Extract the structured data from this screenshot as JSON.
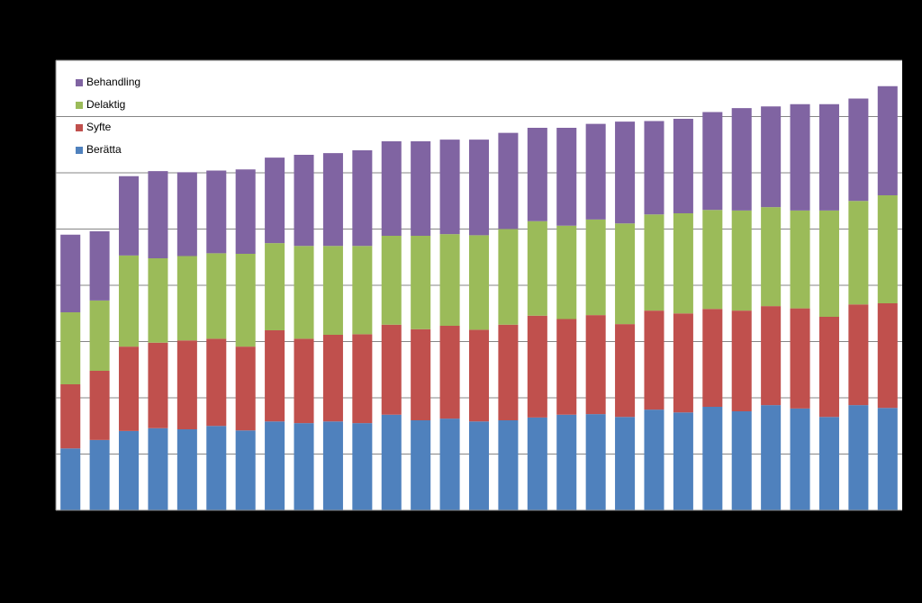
{
  "chart_data": {
    "type": "bar",
    "stacked": true,
    "categories": [
      null,
      null,
      null,
      null,
      null,
      null,
      null,
      null,
      null,
      null,
      null,
      null,
      null,
      null,
      null,
      null,
      null,
      null,
      null,
      null,
      null,
      null,
      null,
      null,
      null,
      null,
      null,
      null,
      null
    ],
    "series": [
      {
        "name": "Berätta",
        "color": "#4f81bd",
        "values": [
          1.1,
          1.25,
          1.41,
          1.46,
          1.44,
          1.5,
          1.42,
          1.58,
          1.55,
          1.58,
          1.55,
          1.7,
          1.6,
          1.63,
          1.58,
          1.6,
          1.65,
          1.7,
          1.71,
          1.66,
          1.79,
          1.74,
          1.84,
          1.76,
          1.87,
          1.81,
          1.66,
          1.87,
          1.82
        ]
      },
      {
        "name": "Syfte",
        "color": "#c0504d",
        "values": [
          1.14,
          1.23,
          1.5,
          1.52,
          1.58,
          1.55,
          1.49,
          1.62,
          1.5,
          1.54,
          1.58,
          1.6,
          1.62,
          1.65,
          1.63,
          1.7,
          1.81,
          1.7,
          1.76,
          1.65,
          1.76,
          1.76,
          1.74,
          1.79,
          1.76,
          1.78,
          1.78,
          1.79,
          1.86
        ]
      },
      {
        "name": "Delaktig",
        "color": "#9bbb59",
        "values": [
          1.28,
          1.25,
          1.62,
          1.5,
          1.5,
          1.52,
          1.65,
          1.55,
          1.65,
          1.58,
          1.57,
          1.58,
          1.66,
          1.63,
          1.68,
          1.7,
          1.68,
          1.66,
          1.7,
          1.79,
          1.71,
          1.78,
          1.76,
          1.78,
          1.76,
          1.74,
          1.89,
          1.84,
          1.92
        ]
      },
      {
        "name": "Behandling",
        "color": "#8064a2",
        "values": [
          1.38,
          1.23,
          1.41,
          1.55,
          1.49,
          1.47,
          1.5,
          1.52,
          1.62,
          1.65,
          1.7,
          1.68,
          1.68,
          1.68,
          1.7,
          1.71,
          1.66,
          1.74,
          1.7,
          1.81,
          1.66,
          1.68,
          1.74,
          1.82,
          1.79,
          1.89,
          1.89,
          1.82,
          1.94
        ]
      }
    ],
    "ylim": [
      0,
      8
    ],
    "yticks": [
      0,
      1,
      2,
      3,
      4,
      5,
      6,
      7,
      8
    ],
    "grid": true,
    "legend": "upper left"
  }
}
